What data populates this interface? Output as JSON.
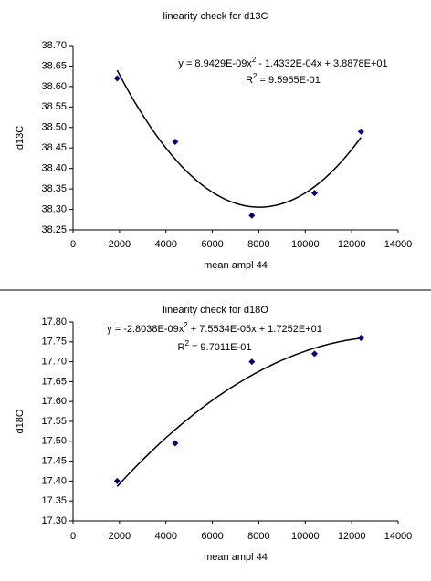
{
  "chart_data": [
    {
      "type": "scatter",
      "title": "linearity check for d13C",
      "equation": [
        "y = 8.9429E-09x",
        "2",
        " - 1.4332E-04x + 3.8878E+01"
      ],
      "r_squared": [
        "R",
        "2",
        " = 9.5955E-01"
      ],
      "x_label": "mean ampl 44",
      "y_label": "d13C",
      "trendline": {
        "type": "polynomial",
        "order": 2
      },
      "series": [
        {
          "color": "#000080",
          "x": [
            1900,
            4400,
            7700,
            10400,
            12400
          ],
          "values": [
            38.62,
            38.465,
            38.285,
            38.34,
            38.49
          ]
        }
      ],
      "xlim": [
        0,
        14000
      ],
      "xticks": [
        0,
        2000,
        4000,
        6000,
        8000,
        10000,
        12000,
        14000
      ],
      "ylim": [
        38.25,
        38.7
      ],
      "yticks": [
        {
          "value": 38.25,
          "label": "38.25"
        },
        {
          "value": 38.3,
          "label": "38.30"
        },
        {
          "value": 38.35,
          "label": "38.35"
        },
        {
          "value": 38.4,
          "label": "38.40"
        },
        {
          "value": 38.45,
          "label": "38.45"
        },
        {
          "value": 38.5,
          "label": "38.50"
        },
        {
          "value": 38.55,
          "label": "38.55"
        },
        {
          "value": 38.6,
          "label": "38.60"
        },
        {
          "value": 38.65,
          "label": "38.65"
        },
        {
          "value": 38.7,
          "label": "38.70"
        }
      ],
      "grid": false
    },
    {
      "type": "scatter",
      "title": "linearity check for d18O",
      "equation": [
        "y = -2.8038E-09x",
        "2",
        " + 7.5534E-05x + 1.7252E+01"
      ],
      "r_squared": [
        "R",
        "2",
        " = 9.7011E-01"
      ],
      "x_label": "mean ampl 44",
      "y_label": "d18O",
      "trendline": {
        "type": "polynomial",
        "order": 2
      },
      "series": [
        {
          "color": "#000080",
          "x": [
            1900,
            4400,
            7700,
            10400,
            12400
          ],
          "values": [
            17.4,
            17.495,
            17.7,
            17.72,
            17.76
          ]
        }
      ],
      "xlim": [
        0,
        14000
      ],
      "xticks": [
        0,
        2000,
        4000,
        6000,
        8000,
        10000,
        12000,
        14000
      ],
      "ylim": [
        17.3,
        17.8
      ],
      "yticks": [
        {
          "value": 17.3,
          "label": "17.30"
        },
        {
          "value": 17.35,
          "label": "17.35"
        },
        {
          "value": 17.4,
          "label": "17.40"
        },
        {
          "value": 17.45,
          "label": "17.45"
        },
        {
          "value": 17.5,
          "label": "17.50"
        },
        {
          "value": 17.55,
          "label": "17.55"
        },
        {
          "value": 17.6,
          "label": "17.60"
        },
        {
          "value": 17.65,
          "label": "17.65"
        },
        {
          "value": 17.7,
          "label": "17.70"
        },
        {
          "value": 17.75,
          "label": "17.75"
        },
        {
          "value": 17.8,
          "label": "17.80"
        }
      ],
      "grid": false
    }
  ]
}
